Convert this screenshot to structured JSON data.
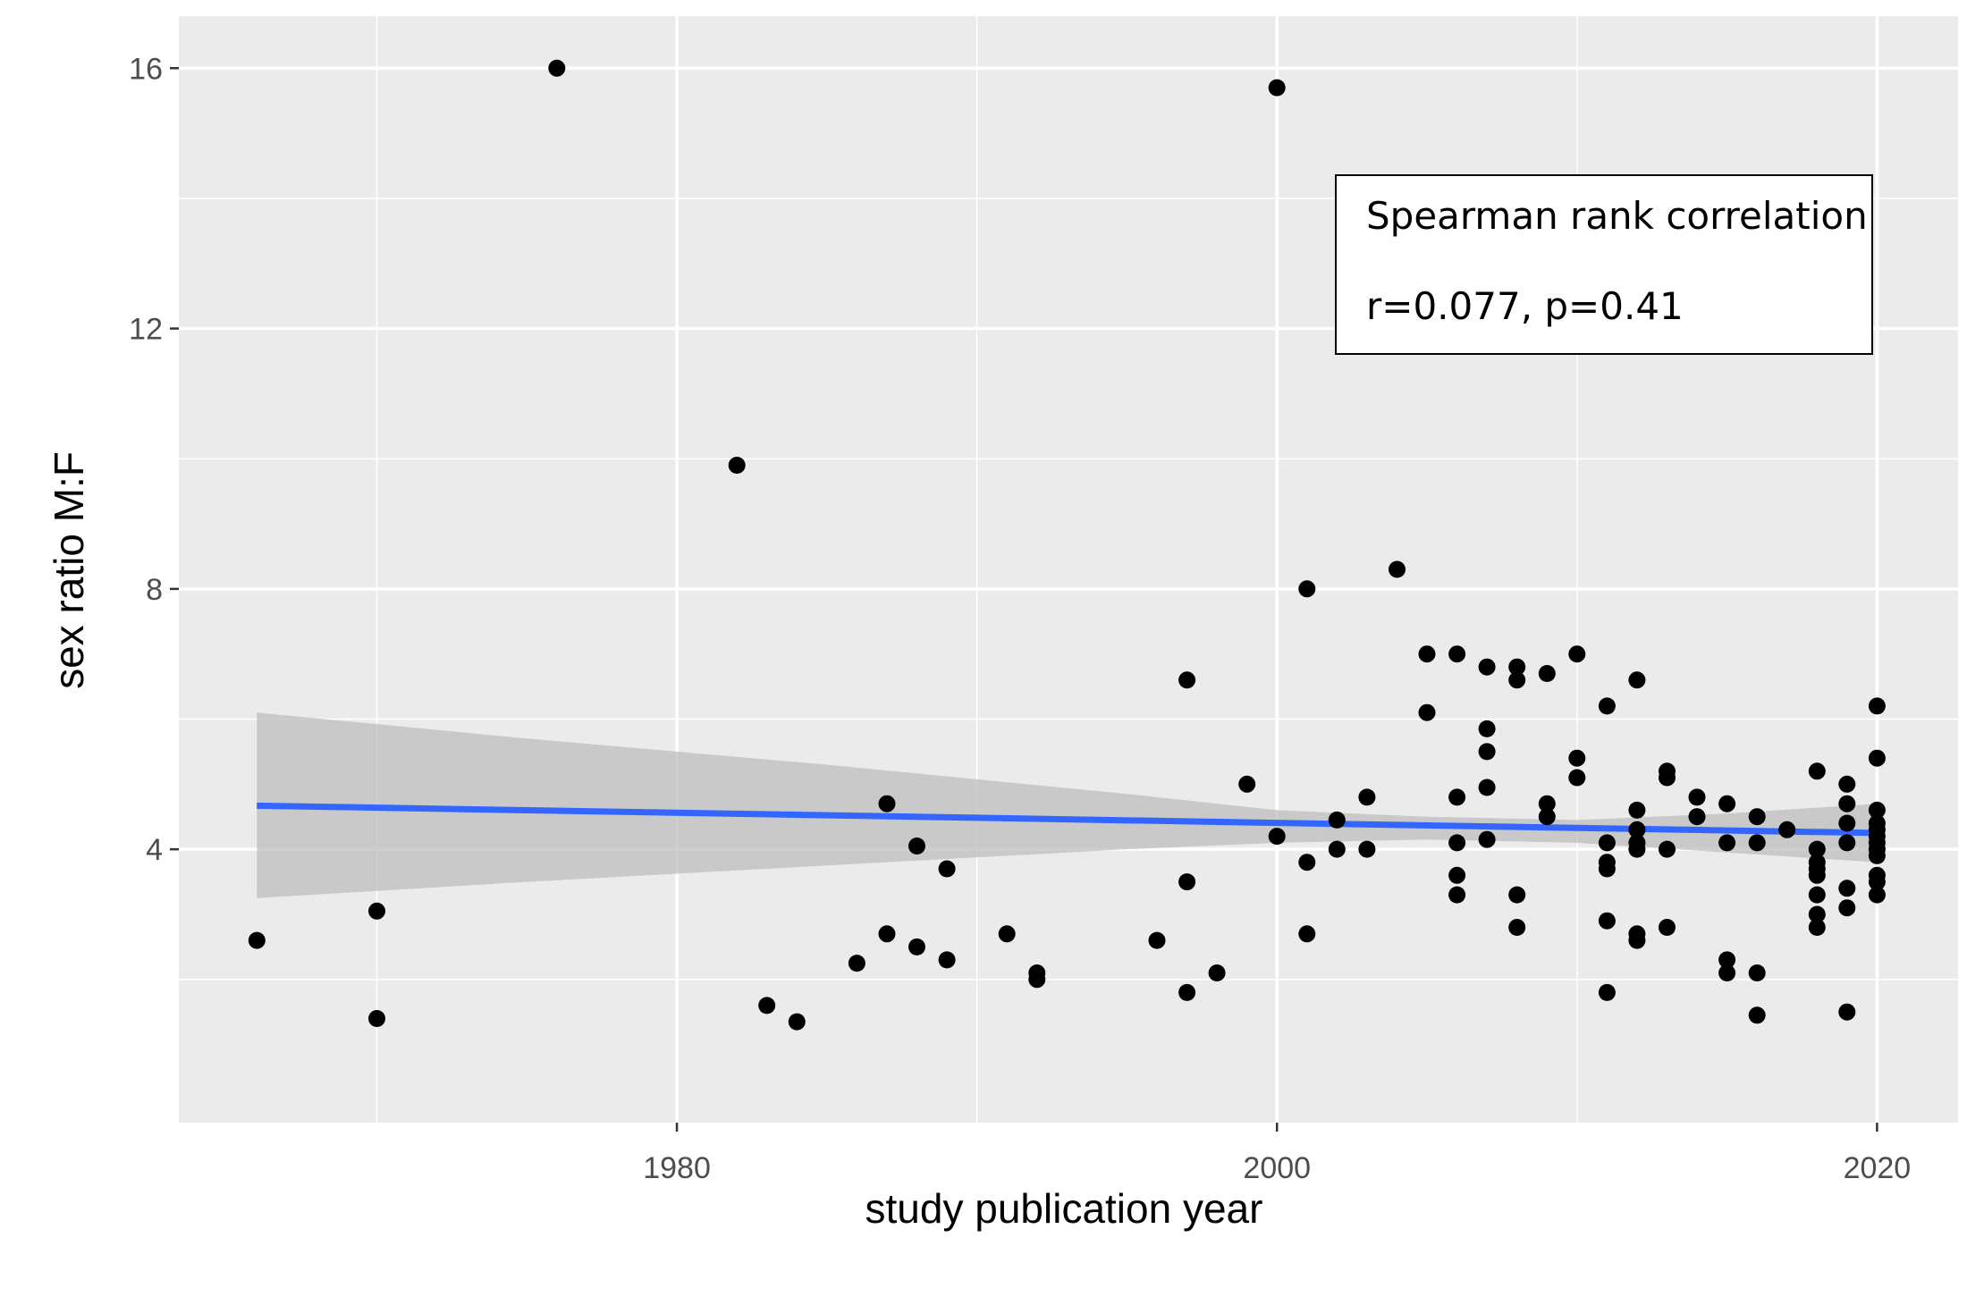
{
  "chart_data": {
    "type": "scatter",
    "xlabel": "study publication year",
    "ylabel": "sex ratio M:F",
    "xlim": [
      1963.4,
      2022.7
    ],
    "ylim": [
      -0.2,
      16.8
    ],
    "x_ticks": [
      1980,
      2000,
      2020
    ],
    "x_minor_ticks": [
      1970,
      1990,
      2010
    ],
    "y_ticks": [
      4,
      8,
      12,
      16
    ],
    "y_minor_ticks": [
      2,
      6,
      10,
      14
    ],
    "grid": true,
    "annotation": {
      "position": "top-right",
      "lines": [
        "Spearman rank correlation",
        "r=0.077, p=0.41"
      ]
    },
    "trend_line": {
      "type": "linear",
      "color": "#3366ff",
      "points": [
        [
          1966,
          4.67
        ],
        [
          2020,
          4.25
        ]
      ],
      "confidence_band": {
        "color": "#bdbdbd",
        "x": [
          1966,
          1975,
          1985,
          1995,
          2000,
          2005,
          2010,
          2015,
          2020
        ],
        "lower": [
          3.25,
          3.5,
          3.75,
          4.0,
          4.1,
          4.15,
          4.1,
          3.95,
          3.8
        ],
        "upper": [
          6.1,
          5.7,
          5.3,
          4.85,
          4.6,
          4.5,
          4.45,
          4.55,
          4.7
        ]
      }
    },
    "point_color": "#000000",
    "series": [
      {
        "points": [
          [
            1966,
            2.6
          ],
          [
            1970,
            3.05
          ],
          [
            1970,
            1.4
          ],
          [
            1976,
            16.0
          ],
          [
            1982,
            9.9
          ],
          [
            1983,
            1.6
          ],
          [
            1984,
            1.35
          ],
          [
            1986,
            2.25
          ],
          [
            1987,
            4.7
          ],
          [
            1987,
            2.7
          ],
          [
            1988,
            4.05
          ],
          [
            1988,
            2.5
          ],
          [
            1989,
            3.7
          ],
          [
            1989,
            2.3
          ],
          [
            1991,
            2.7
          ],
          [
            1992,
            2.1
          ],
          [
            1992,
            2.0
          ],
          [
            1996,
            2.6
          ],
          [
            1997,
            6.6
          ],
          [
            1997,
            3.5
          ],
          [
            1997,
            1.8
          ],
          [
            1998,
            2.1
          ],
          [
            1999,
            5.0
          ],
          [
            2000,
            15.7
          ],
          [
            2000,
            4.2
          ],
          [
            2001,
            8.0
          ],
          [
            2001,
            3.8
          ],
          [
            2001,
            2.7
          ],
          [
            2002,
            4.45
          ],
          [
            2002,
            4.0
          ],
          [
            2003,
            4.8
          ],
          [
            2003,
            4.0
          ],
          [
            2004,
            8.3
          ],
          [
            2005,
            7.0
          ],
          [
            2005,
            6.1
          ],
          [
            2006,
            7.0
          ],
          [
            2006,
            4.8
          ],
          [
            2006,
            4.1
          ],
          [
            2006,
            3.6
          ],
          [
            2006,
            3.3
          ],
          [
            2007,
            6.8
          ],
          [
            2007,
            5.85
          ],
          [
            2007,
            5.5
          ],
          [
            2007,
            4.95
          ],
          [
            2007,
            4.15
          ],
          [
            2008,
            6.8
          ],
          [
            2008,
            6.6
          ],
          [
            2008,
            3.3
          ],
          [
            2008,
            2.8
          ],
          [
            2009,
            6.7
          ],
          [
            2009,
            4.7
          ],
          [
            2009,
            4.5
          ],
          [
            2010,
            7.0
          ],
          [
            2010,
            5.4
          ],
          [
            2010,
            5.1
          ],
          [
            2011,
            6.2
          ],
          [
            2011,
            4.1
          ],
          [
            2011,
            3.8
          ],
          [
            2011,
            3.7
          ],
          [
            2011,
            2.9
          ],
          [
            2011,
            1.8
          ],
          [
            2012,
            6.6
          ],
          [
            2012,
            4.6
          ],
          [
            2012,
            4.3
          ],
          [
            2012,
            4.1
          ],
          [
            2012,
            4.0
          ],
          [
            2012,
            2.7
          ],
          [
            2012,
            2.6
          ],
          [
            2013,
            5.2
          ],
          [
            2013,
            5.1
          ],
          [
            2013,
            4.0
          ],
          [
            2013,
            2.8
          ],
          [
            2014,
            4.8
          ],
          [
            2014,
            4.5
          ],
          [
            2015,
            4.7
          ],
          [
            2015,
            4.1
          ],
          [
            2015,
            2.3
          ],
          [
            2015,
            2.1
          ],
          [
            2016,
            4.5
          ],
          [
            2016,
            4.1
          ],
          [
            2016,
            2.1
          ],
          [
            2016,
            1.45
          ],
          [
            2017,
            4.3
          ],
          [
            2018,
            5.2
          ],
          [
            2018,
            4.0
          ],
          [
            2018,
            3.8
          ],
          [
            2018,
            3.7
          ],
          [
            2018,
            3.6
          ],
          [
            2018,
            3.3
          ],
          [
            2018,
            3.0
          ],
          [
            2018,
            2.8
          ],
          [
            2019,
            5.0
          ],
          [
            2019,
            4.7
          ],
          [
            2019,
            4.4
          ],
          [
            2019,
            4.1
          ],
          [
            2019,
            3.4
          ],
          [
            2019,
            3.1
          ],
          [
            2019,
            1.5
          ],
          [
            2020,
            6.2
          ],
          [
            2020,
            5.4
          ],
          [
            2020,
            4.6
          ],
          [
            2020,
            4.4
          ],
          [
            2020,
            4.3
          ],
          [
            2020,
            4.2
          ],
          [
            2020,
            4.1
          ],
          [
            2020,
            4.0
          ],
          [
            2020,
            3.9
          ],
          [
            2020,
            3.6
          ],
          [
            2020,
            3.5
          ],
          [
            2020,
            3.3
          ]
        ]
      }
    ]
  }
}
